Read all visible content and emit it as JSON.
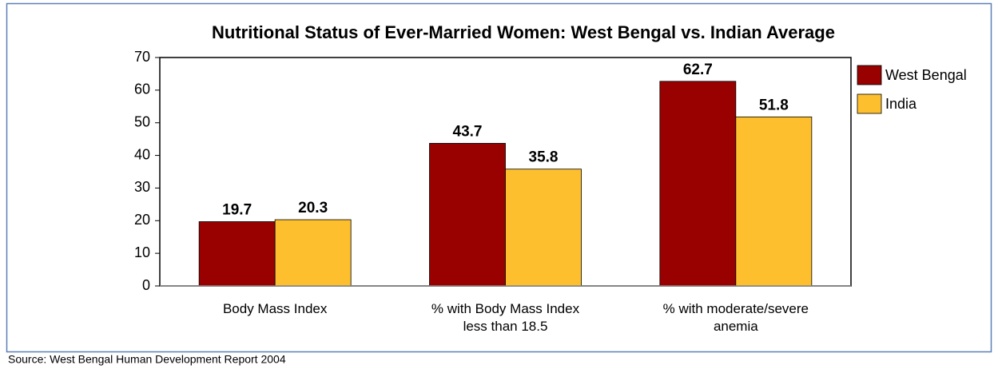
{
  "chart_data": {
    "type": "bar",
    "title": "Nutritional Status of Ever-Married Women: West Bengal vs. Indian Average",
    "categories": [
      "Body Mass Index",
      "% with Body Mass Index less than 18.5",
      "% with moderate/severe anemia"
    ],
    "series": [
      {
        "name": "West Bengal",
        "color": "#990000",
        "values": [
          19.7,
          43.7,
          62.7
        ]
      },
      {
        "name": "India",
        "color": "#fdbf2d",
        "values": [
          20.3,
          35.8,
          51.8
        ]
      }
    ],
    "ylim": [
      0,
      70
    ],
    "yticks": [
      0,
      10,
      20,
      30,
      40,
      50,
      60,
      70
    ],
    "legend": "right",
    "source": "Source: West Bengal Human Development Report 2004"
  }
}
